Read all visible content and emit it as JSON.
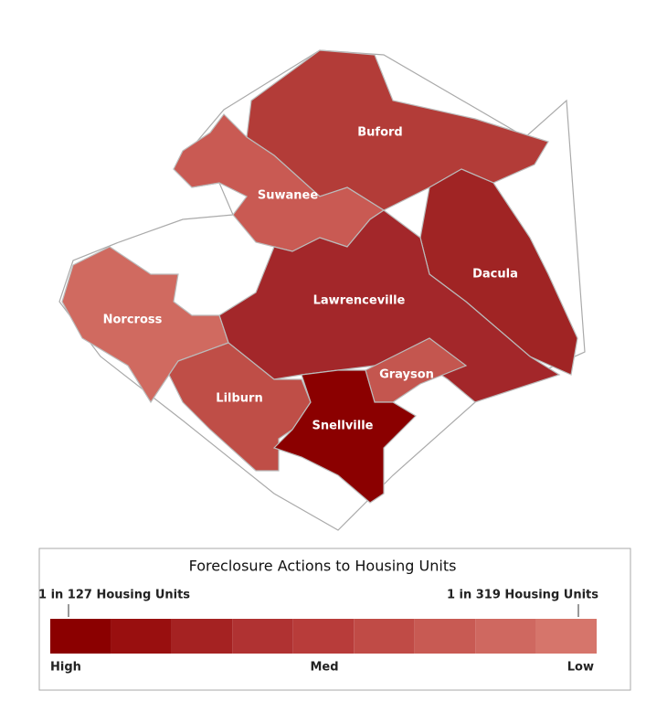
{
  "map": {
    "regions": [
      {
        "name": "Buford",
        "color": "#b33c38"
      },
      {
        "name": "Suwanee",
        "color": "#c95a53"
      },
      {
        "name": "Dacula",
        "color": "#a02424"
      },
      {
        "name": "Lawrenceville",
        "color": "#a3272a"
      },
      {
        "name": "Norcross",
        "color": "#d06a60"
      },
      {
        "name": "Grayson",
        "color": "#c4564f"
      },
      {
        "name": "Lilburn",
        "color": "#bf4e47"
      },
      {
        "name": "Snellville",
        "color": "#8b0000"
      }
    ]
  },
  "legend": {
    "title": "Foreclosure Actions to Housing Units",
    "left_label": "1 in 127 Housing Units",
    "right_label": "1 in 319 Housing Units",
    "colors": [
      "#8b0000",
      "#990f0f",
      "#a52222",
      "#b03232",
      "#b83c3a",
      "#c04b46",
      "#c85a53",
      "#cf6860",
      "#d6756b"
    ],
    "scale_labels": [
      "High",
      "Med",
      "Low"
    ]
  }
}
